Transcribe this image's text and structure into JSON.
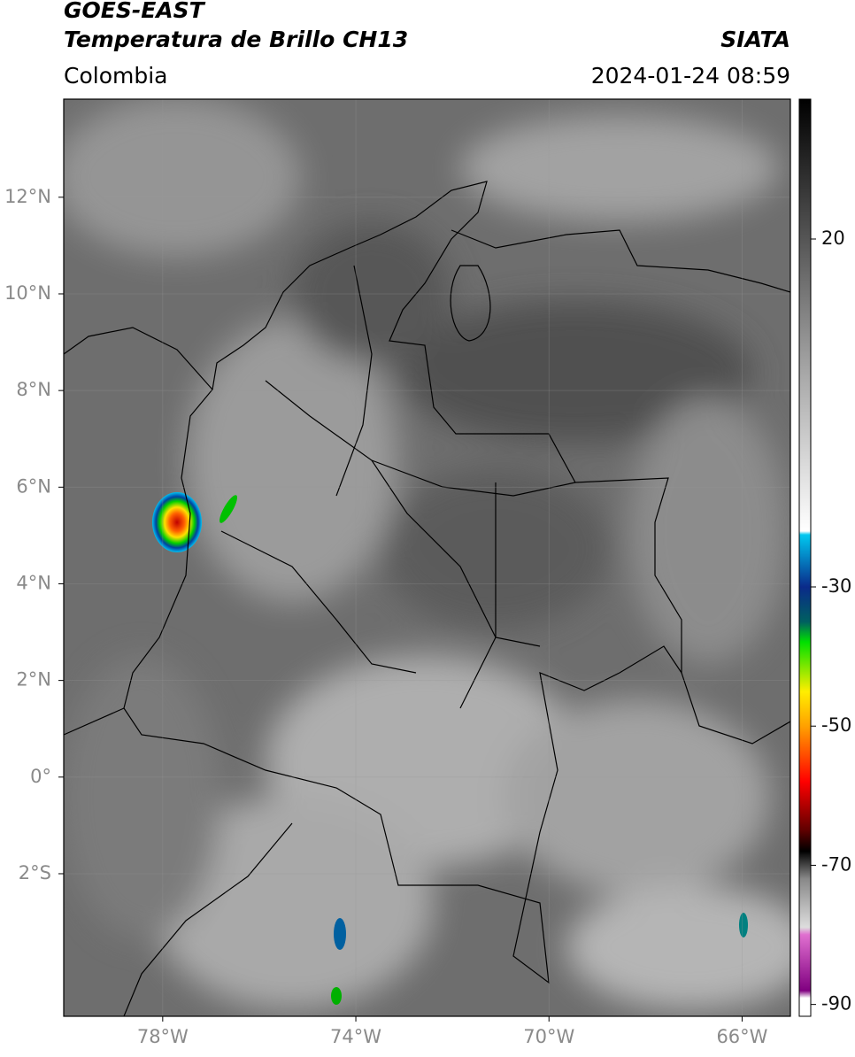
{
  "header": {
    "satellite": "GOES-EAST",
    "product": "Temperatura de Brillo CH13",
    "agency": "SIATA",
    "region": "Colombia",
    "datetime": "2024-01-24 08:59"
  },
  "map": {
    "lonlim": [
      -80.05,
      -65.0
    ],
    "latlim": [
      -4.95,
      14.03
    ],
    "lon_ticks": [
      {
        "value": -78,
        "label": "78°W"
      },
      {
        "value": -74,
        "label": "74°W"
      },
      {
        "value": -70,
        "label": "70°W"
      },
      {
        "value": -66,
        "label": "66°W"
      }
    ],
    "lat_ticks": [
      {
        "value": 12,
        "label": "12°N"
      },
      {
        "value": 10,
        "label": "10°N"
      },
      {
        "value": 8,
        "label": "8°N"
      },
      {
        "value": 6,
        "label": "6°N"
      },
      {
        "value": 4,
        "label": "4°N"
      },
      {
        "value": 2,
        "label": "2°N"
      },
      {
        "value": 0,
        "label": "0°"
      },
      {
        "value": -2,
        "label": "2°S"
      }
    ]
  },
  "colorbar": {
    "lim": [
      -91.7,
      40.1
    ],
    "ticks": [
      20,
      -30,
      -50,
      -70,
      -90
    ]
  }
}
